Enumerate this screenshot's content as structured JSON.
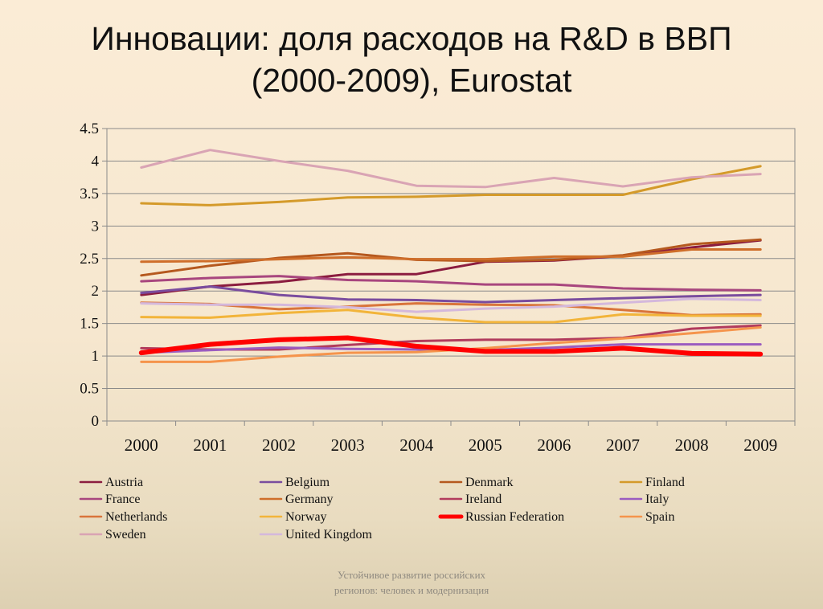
{
  "slide": {
    "title_line1": "Инновации: доля расходов на R&D в ВВП",
    "title_line2": "(2000-2009), Eurostat",
    "footer_line1": "Устойчивое развитие российских",
    "footer_line2": "регионов: человек и модернизация"
  },
  "chart_data": {
    "type": "line",
    "x": [
      "2000",
      "2001",
      "2002",
      "2003",
      "2004",
      "2005",
      "2006",
      "2007",
      "2008",
      "2009"
    ],
    "ylim": [
      0,
      4.5
    ],
    "yticks": [
      "0",
      "0.5",
      "1",
      "1.5",
      "2",
      "2.5",
      "3",
      "3.5",
      "4",
      "4.5"
    ],
    "grid": true,
    "legend_position": "bottom",
    "series": [
      {
        "name": "Austria",
        "color": "#8b1c3f",
        "width": 3,
        "values": [
          1.94,
          2.07,
          2.14,
          2.26,
          2.26,
          2.45,
          2.47,
          2.54,
          2.67,
          2.78
        ]
      },
      {
        "name": "Belgium",
        "color": "#7a4c9e",
        "width": 3,
        "values": [
          1.97,
          2.07,
          1.94,
          1.87,
          1.86,
          1.83,
          1.86,
          1.89,
          1.92,
          1.94
        ]
      },
      {
        "name": "Denmark",
        "color": "#b5581e",
        "width": 3,
        "values": [
          2.24,
          2.39,
          2.51,
          2.58,
          2.48,
          2.46,
          2.48,
          2.55,
          2.72,
          2.79
        ]
      },
      {
        "name": "Finland",
        "color": "#d49a2a",
        "width": 3,
        "values": [
          3.35,
          3.32,
          3.37,
          3.44,
          3.45,
          3.48,
          3.48,
          3.48,
          3.72,
          3.92
        ]
      },
      {
        "name": "France",
        "color": "#a8467e",
        "width": 3,
        "values": [
          2.15,
          2.2,
          2.23,
          2.17,
          2.15,
          2.1,
          2.1,
          2.04,
          2.02,
          2.01
        ]
      },
      {
        "name": "Germany",
        "color": "#cf6e2a",
        "width": 3,
        "values": [
          2.45,
          2.46,
          2.49,
          2.52,
          2.49,
          2.49,
          2.53,
          2.53,
          2.64,
          2.64
        ]
      },
      {
        "name": "Ireland",
        "color": "#b23b5c",
        "width": 3,
        "values": [
          1.12,
          1.1,
          1.1,
          1.17,
          1.23,
          1.25,
          1.25,
          1.28,
          1.42,
          1.47
        ]
      },
      {
        "name": "Italy",
        "color": "#9b5cc0",
        "width": 3,
        "values": [
          1.05,
          1.09,
          1.13,
          1.11,
          1.1,
          1.09,
          1.13,
          1.18,
          1.18,
          1.18
        ]
      },
      {
        "name": "Netherlands",
        "color": "#d9743b",
        "width": 3,
        "values": [
          1.82,
          1.8,
          1.72,
          1.76,
          1.81,
          1.79,
          1.78,
          1.71,
          1.63,
          1.64
        ]
      },
      {
        "name": "Norway",
        "color": "#f2b43a",
        "width": 3,
        "values": [
          1.6,
          1.59,
          1.66,
          1.71,
          1.59,
          1.52,
          1.52,
          1.64,
          1.62,
          1.62
        ]
      },
      {
        "name": "Russian Federation",
        "color": "#ff0000",
        "width": 6,
        "values": [
          1.05,
          1.18,
          1.25,
          1.28,
          1.15,
          1.07,
          1.07,
          1.12,
          1.04,
          1.03
        ]
      },
      {
        "name": "Spain",
        "color": "#f5944c",
        "width": 3,
        "values": [
          0.91,
          0.91,
          0.99,
          1.05,
          1.06,
          1.12,
          1.2,
          1.27,
          1.35,
          1.44
        ]
      },
      {
        "name": "Sweden",
        "color": "#d9a4b4",
        "width": 3,
        "values": [
          3.9,
          4.17,
          4.0,
          3.85,
          3.62,
          3.6,
          3.74,
          3.61,
          3.75,
          3.8
        ]
      },
      {
        "name": "United Kingdom",
        "color": "#d4b8dc",
        "width": 3,
        "values": [
          1.81,
          1.79,
          1.79,
          1.75,
          1.68,
          1.73,
          1.76,
          1.82,
          1.88,
          1.86
        ]
      }
    ]
  }
}
